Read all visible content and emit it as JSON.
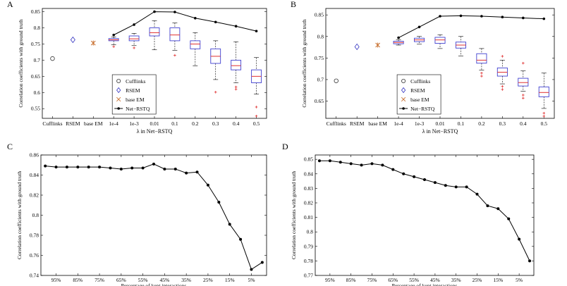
{
  "panel_labels": [
    "A",
    "B",
    "C",
    "D"
  ],
  "colors": {
    "box": "#4040d0",
    "median": "#e03030",
    "outlier": "#e03030",
    "line": "#000000",
    "rsem": "#3030c0",
    "base_em": "#c87030"
  },
  "chart_data": [
    {
      "panel": "A",
      "type": "box+line",
      "ylabel": "Correlation coefficients with ground truth",
      "xlabel": "λ in Net−RSTQ",
      "ylim": [
        0.52,
        0.86
      ],
      "yticks": [
        0.55,
        0.6,
        0.65,
        0.7,
        0.75,
        0.8,
        0.85
      ],
      "categories": [
        "Cufflinks",
        "RSEM",
        "base EM",
        "1e-4",
        "1e-3",
        "0.01",
        "0.1",
        "0.2",
        "0.3",
        "0.4",
        "0.5"
      ],
      "point_values": [
        0.705,
        0.763,
        0.753
      ],
      "boxes": [
        {
          "w_low": 0.748,
          "q1": 0.76,
          "median": 0.763,
          "q3": 0.767,
          "w_high": 0.772,
          "outliers": [
            0.742
          ]
        },
        {
          "w_low": 0.745,
          "q1": 0.76,
          "median": 0.766,
          "q3": 0.775,
          "w_high": 0.783,
          "outliers": [
            0.738
          ]
        },
        {
          "w_low": 0.732,
          "q1": 0.775,
          "median": 0.785,
          "q3": 0.8,
          "w_high": 0.822,
          "outliers": []
        },
        {
          "w_low": 0.73,
          "q1": 0.76,
          "median": 0.778,
          "q3": 0.8,
          "w_high": 0.815,
          "outliers": [
            0.715
          ]
        },
        {
          "w_low": 0.682,
          "q1": 0.735,
          "median": 0.75,
          "q3": 0.76,
          "w_high": 0.785,
          "outliers": []
        },
        {
          "w_low": 0.64,
          "q1": 0.69,
          "median": 0.712,
          "q3": 0.735,
          "w_high": 0.76,
          "outliers": [
            0.601
          ]
        },
        {
          "w_low": 0.63,
          "q1": 0.67,
          "median": 0.683,
          "q3": 0.7,
          "w_high": 0.757,
          "outliers": [
            0.617,
            0.61
          ]
        },
        {
          "w_low": 0.595,
          "q1": 0.63,
          "median": 0.65,
          "q3": 0.67,
          "w_high": 0.708,
          "outliers": [
            0.555,
            0.527
          ]
        }
      ],
      "line_series": {
        "name": "Net−RSTQ",
        "values": [
          0.778,
          0.81,
          0.85,
          0.849,
          0.83,
          0.818,
          0.805,
          0.79
        ]
      },
      "legend": [
        "Cufflinks",
        "RSEM",
        "base EM",
        "Net−RSTQ"
      ],
      "legend_position": "lower-left"
    },
    {
      "panel": "B",
      "type": "box+line",
      "ylabel": "Correlation coefficients with ground truth",
      "xlabel": "λ in Net−RSTQ",
      "ylim": [
        0.61,
        0.865
      ],
      "yticks": [
        0.65,
        0.7,
        0.75,
        0.8,
        0.85
      ],
      "categories": [
        "Cufflinks",
        "RSEM",
        "base EM",
        "1e-4",
        "1e-3",
        "0.01",
        "0.1",
        "0.2",
        "0.3",
        "0.4",
        "0.5"
      ],
      "point_values": [
        0.697,
        0.776,
        0.78
      ],
      "boxes": [
        {
          "w_low": 0.78,
          "q1": 0.783,
          "median": 0.786,
          "q3": 0.789,
          "w_high": 0.792,
          "outliers": []
        },
        {
          "w_low": 0.782,
          "q1": 0.788,
          "median": 0.792,
          "q3": 0.796,
          "w_high": 0.8,
          "outliers": []
        },
        {
          "w_low": 0.772,
          "q1": 0.784,
          "median": 0.792,
          "q3": 0.798,
          "w_high": 0.804,
          "outliers": []
        },
        {
          "w_low": 0.755,
          "q1": 0.773,
          "median": 0.78,
          "q3": 0.787,
          "w_high": 0.8,
          "outliers": []
        },
        {
          "w_low": 0.722,
          "q1": 0.738,
          "median": 0.745,
          "q3": 0.76,
          "w_high": 0.772,
          "outliers": [
            0.715,
            0.708
          ]
        },
        {
          "w_low": 0.69,
          "q1": 0.708,
          "median": 0.717,
          "q3": 0.727,
          "w_high": 0.745,
          "outliers": [
            0.754,
            0.684,
            0.677
          ]
        },
        {
          "w_low": 0.673,
          "q1": 0.685,
          "median": 0.693,
          "q3": 0.703,
          "w_high": 0.72,
          "outliers": [
            0.738,
            0.664,
            0.657
          ]
        },
        {
          "w_low": 0.633,
          "q1": 0.66,
          "median": 0.67,
          "q3": 0.683,
          "w_high": 0.715,
          "outliers": [
            0.622,
            0.615
          ]
        }
      ],
      "line_series": {
        "name": "Net−RSTQ",
        "values": [
          0.797,
          0.822,
          0.847,
          0.848,
          0.847,
          0.845,
          0.843,
          0.841
        ]
      },
      "legend": [
        "Cufflinks",
        "RSEM",
        "base EM",
        "Net−RSTQ"
      ],
      "legend_position": "lower-left"
    },
    {
      "panel": "C",
      "type": "line",
      "ylabel": "Correlation coefficients with ground truth",
      "xlabel": "Percentage of kept interactions",
      "x": [
        100,
        95,
        90,
        85,
        80,
        75,
        70,
        65,
        60,
        55,
        50,
        45,
        40,
        35,
        30,
        25,
        20,
        15,
        10,
        5,
        0
      ],
      "xlim": [
        102,
        -2
      ],
      "xticks": [
        95,
        85,
        75,
        65,
        55,
        45,
        35,
        25,
        15,
        5
      ],
      "xtick_labels": [
        "95%",
        "85%",
        "75%",
        "65%",
        "55%",
        "45%",
        "35%",
        "25%",
        "15%",
        "5%"
      ],
      "values": [
        0.849,
        0.848,
        0.848,
        0.848,
        0.848,
        0.848,
        0.847,
        0.846,
        0.847,
        0.847,
        0.851,
        0.846,
        0.846,
        0.842,
        0.843,
        0.83,
        0.813,
        0.791,
        0.776,
        0.746,
        0.753
      ],
      "ylim": [
        0.74,
        0.86
      ],
      "yticks": [
        0.74,
        0.76,
        0.78,
        0.8,
        0.82,
        0.84,
        0.86
      ]
    },
    {
      "panel": "D",
      "type": "line",
      "ylabel": "Correlation coefficients with ground truth",
      "xlabel": "Percentage of kept interactions",
      "x": [
        100,
        95,
        90,
        85,
        80,
        75,
        70,
        65,
        60,
        55,
        50,
        45,
        40,
        35,
        30,
        25,
        20,
        15,
        10,
        5,
        0
      ],
      "xlim": [
        102,
        -2
      ],
      "xticks": [
        95,
        85,
        75,
        65,
        55,
        45,
        35,
        25,
        15,
        5
      ],
      "xtick_labels": [
        "95%",
        "85%",
        "75%",
        "65%",
        "55%",
        "45%",
        "35%",
        "25%",
        "15%",
        "5%"
      ],
      "values": [
        0.849,
        0.849,
        0.848,
        0.847,
        0.846,
        0.847,
        0.846,
        0.843,
        0.84,
        0.838,
        0.836,
        0.834,
        0.832,
        0.831,
        0.831,
        0.826,
        0.818,
        0.816,
        0.809,
        0.795,
        0.78
      ],
      "ylim": [
        0.77,
        0.853
      ],
      "yticks": [
        0.77,
        0.78,
        0.79,
        0.8,
        0.81,
        0.82,
        0.83,
        0.84,
        0.85
      ]
    }
  ]
}
